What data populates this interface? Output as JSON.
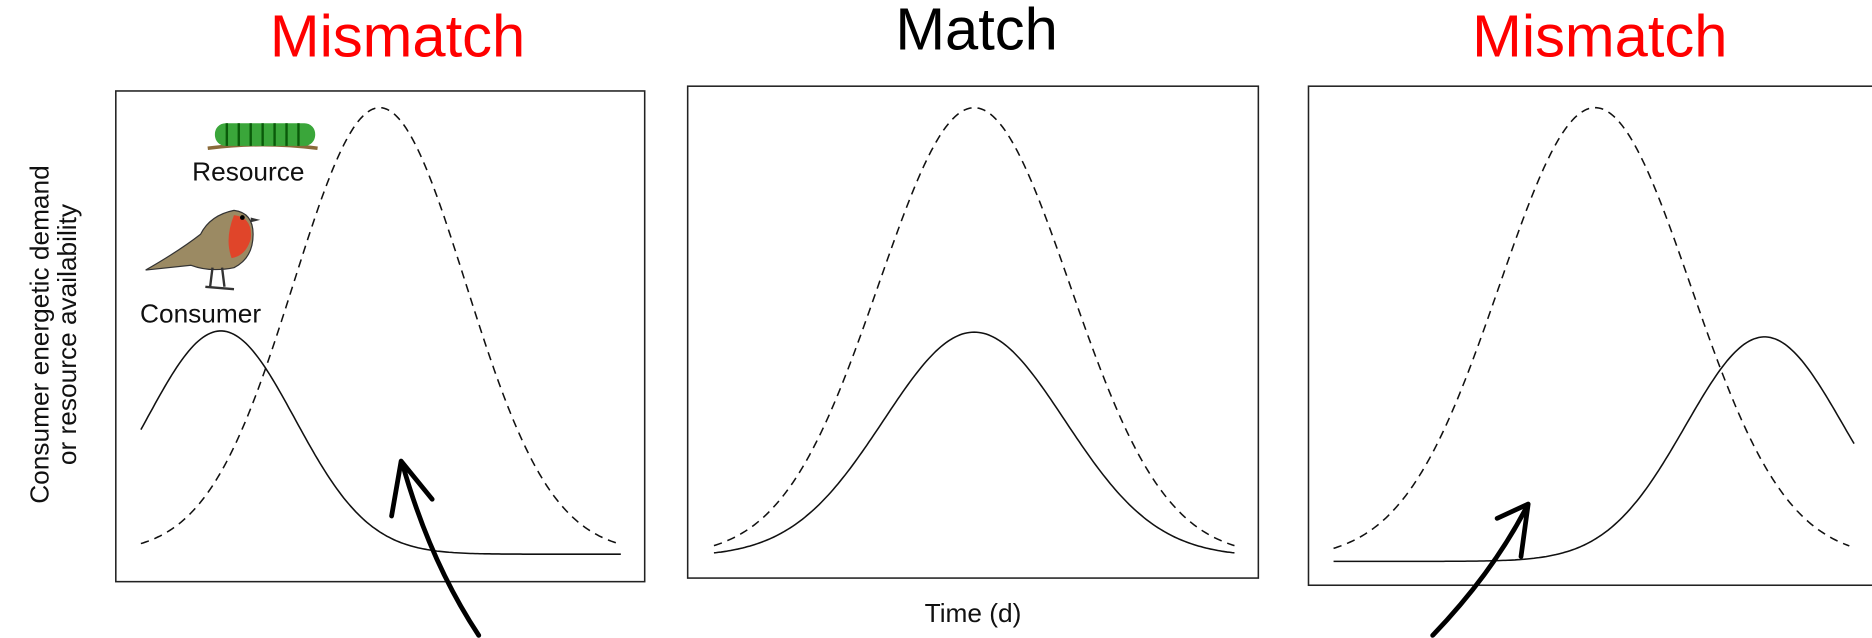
{
  "panels": [
    {
      "title": "Mismatch"
    },
    {
      "title": "Match"
    },
    {
      "title": "Mismatch"
    }
  ],
  "y_axis_label": [
    "Consumer energetic demand",
    "or resource availability"
  ],
  "x_axis_label": "Time (d)",
  "legend": {
    "resource": "Resource",
    "consumer": "Consumer"
  }
}
